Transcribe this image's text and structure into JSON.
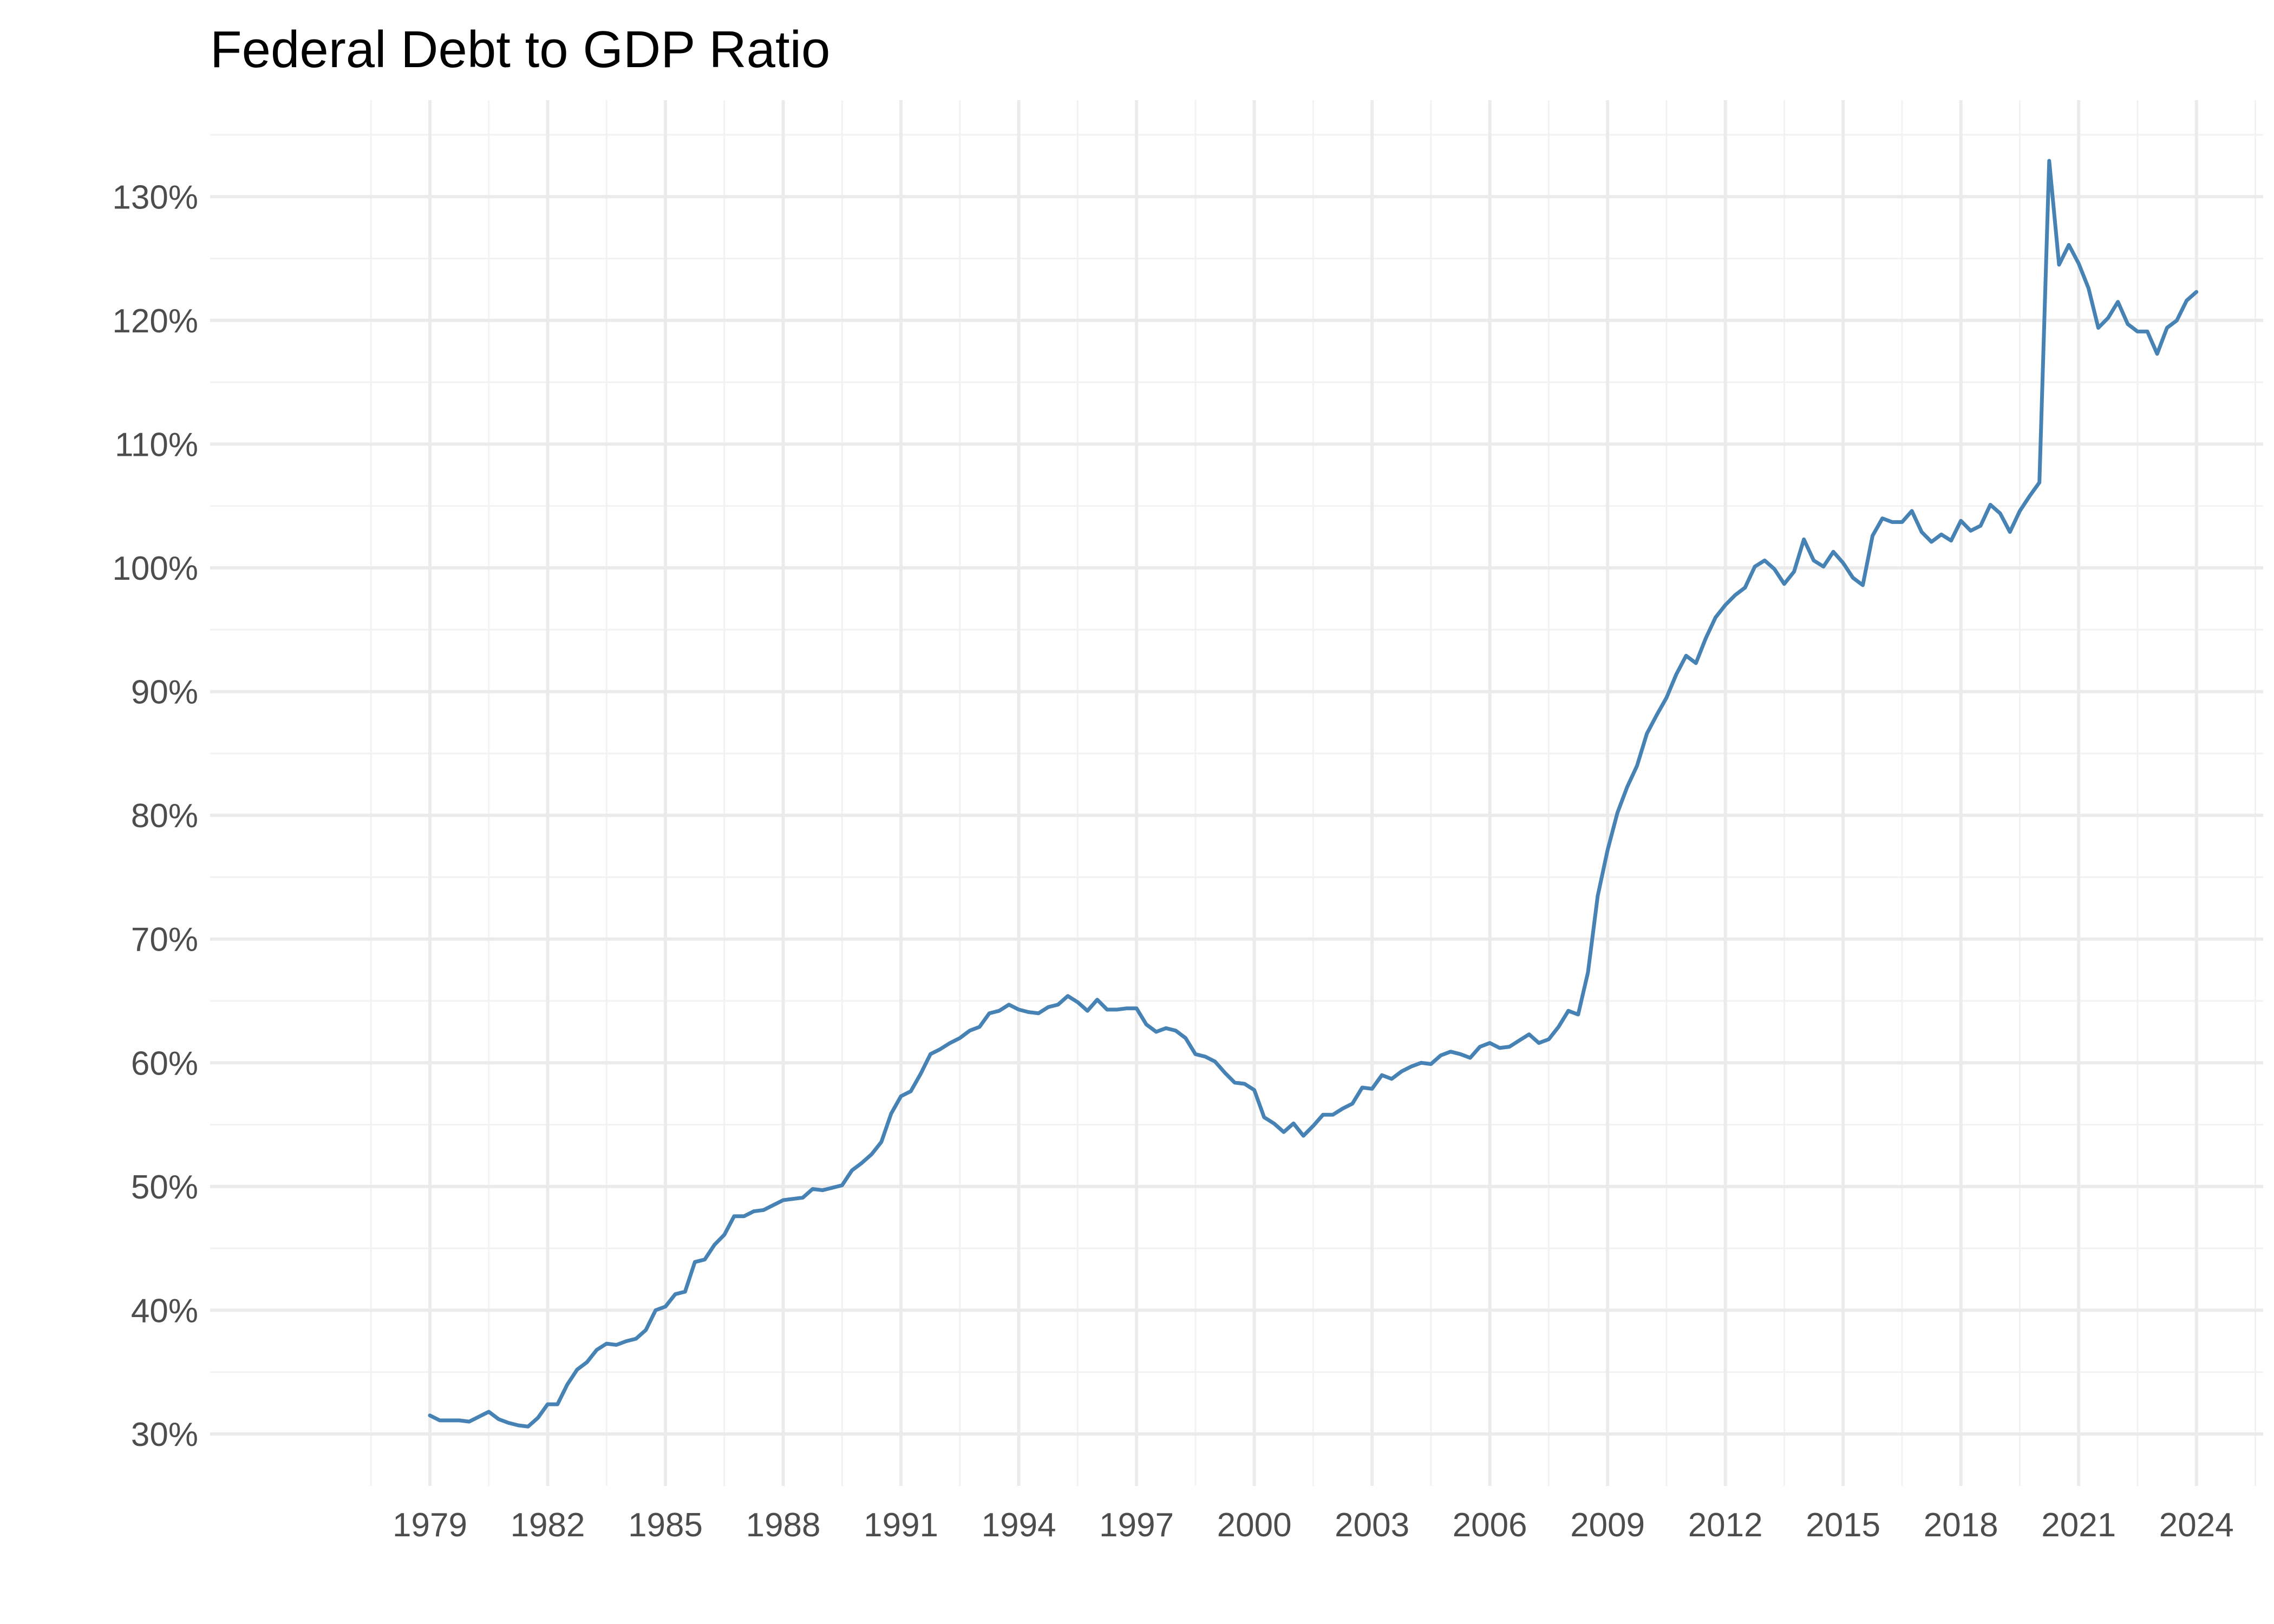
{
  "chart_data": {
    "type": "line",
    "title": "Federal Debt to GDP Ratio",
    "xlabel": "",
    "ylabel": "",
    "grid": true,
    "legend": "none",
    "colors": {
      "line": "#4682b4",
      "grid_major": "#ebebeb",
      "grid_minor": "#f2f2f2",
      "tick_text": "#4d4d4d",
      "title": "#000000",
      "background": "#ffffff"
    },
    "xlim": [
      1973.4,
      2025.7
    ],
    "ylim": [
      25.8,
      137.8
    ],
    "x_ticks": [
      1979,
      1982,
      1985,
      1988,
      1991,
      1994,
      1997,
      2000,
      2003,
      2006,
      2009,
      2012,
      2015,
      2018,
      2021,
      2024
    ],
    "x_tick_labels": [
      "1979",
      "1982",
      "1985",
      "1988",
      "1991",
      "1994",
      "1997",
      "2000",
      "2003",
      "2006",
      "2009",
      "2012",
      "2015",
      "2018",
      "2021",
      "2024"
    ],
    "y_ticks": [
      30,
      40,
      50,
      60,
      70,
      80,
      90,
      100,
      110,
      120,
      130
    ],
    "y_tick_labels": [
      "30%",
      "40%",
      "50%",
      "60%",
      "70%",
      "80%",
      "90%",
      "100%",
      "110%",
      "120%",
      "130%"
    ],
    "series": [
      {
        "name": "Federal Debt to GDP",
        "x": [
          1979.0,
          1979.25,
          1979.5,
          1979.75,
          1980.0,
          1980.25,
          1980.5,
          1980.75,
          1981.0,
          1981.25,
          1981.5,
          1981.75,
          1982.0,
          1982.25,
          1982.5,
          1982.75,
          1983.0,
          1983.25,
          1983.5,
          1983.75,
          1984.0,
          1984.25,
          1984.5,
          1984.75,
          1985.0,
          1985.25,
          1985.5,
          1985.75,
          1986.0,
          1986.25,
          1986.5,
          1986.75,
          1987.0,
          1987.25,
          1987.5,
          1987.75,
          1988.0,
          1988.25,
          1988.5,
          1988.75,
          1989.0,
          1989.25,
          1989.5,
          1989.75,
          1990.0,
          1990.25,
          1990.5,
          1990.75,
          1991.0,
          1991.25,
          1991.5,
          1991.75,
          1992.0,
          1992.25,
          1992.5,
          1992.75,
          1993.0,
          1993.25,
          1993.5,
          1993.75,
          1994.0,
          1994.25,
          1994.5,
          1994.75,
          1995.0,
          1995.25,
          1995.5,
          1995.75,
          1996.0,
          1996.25,
          1996.5,
          1996.75,
          1997.0,
          1997.25,
          1997.5,
          1997.75,
          1998.0,
          1998.25,
          1998.5,
          1998.75,
          1999.0,
          1999.25,
          1999.5,
          1999.75,
          2000.0,
          2000.25,
          2000.5,
          2000.75,
          2001.0,
          2001.25,
          2001.5,
          2001.75,
          2002.0,
          2002.25,
          2002.5,
          2002.75,
          2003.0,
          2003.25,
          2003.5,
          2003.75,
          2004.0,
          2004.25,
          2004.5,
          2004.75,
          2005.0,
          2005.25,
          2005.5,
          2005.75,
          2006.0,
          2006.25,
          2006.5,
          2006.75,
          2007.0,
          2007.25,
          2007.5,
          2007.75,
          2008.0,
          2008.25,
          2008.5,
          2008.75,
          2009.0,
          2009.25,
          2009.5,
          2009.75,
          2010.0,
          2010.25,
          2010.5,
          2010.75,
          2011.0,
          2011.25,
          2011.5,
          2011.75,
          2012.0,
          2012.25,
          2012.5,
          2012.75,
          2013.0,
          2013.25,
          2013.5,
          2013.75,
          2014.0,
          2014.25,
          2014.5,
          2014.75,
          2015.0,
          2015.25,
          2015.5,
          2015.75,
          2016.0,
          2016.25,
          2016.5,
          2016.75,
          2017.0,
          2017.25,
          2017.5,
          2017.75,
          2018.0,
          2018.25,
          2018.5,
          2018.75,
          2019.0,
          2019.25,
          2019.5,
          2019.75,
          2020.0,
          2020.25,
          2020.5,
          2020.75,
          2021.0,
          2021.25,
          2021.5,
          2021.75,
          2022.0,
          2022.25,
          2022.5,
          2022.75,
          2023.0,
          2023.25,
          2023.5,
          2023.75,
          2024.0
        ],
        "values": [
          31.5,
          31.1,
          31.1,
          31.1,
          31.0,
          31.4,
          31.8,
          31.2,
          30.9,
          30.7,
          30.6,
          31.3,
          32.4,
          32.4,
          34.0,
          35.2,
          35.8,
          36.8,
          37.3,
          37.2,
          37.5,
          37.7,
          38.4,
          40.0,
          40.3,
          41.3,
          41.5,
          43.9,
          44.1,
          45.3,
          46.1,
          47.6,
          47.6,
          48.0,
          48.1,
          48.5,
          48.9,
          49.0,
          49.1,
          49.8,
          49.7,
          49.9,
          50.1,
          51.3,
          51.9,
          52.6,
          53.6,
          55.9,
          57.3,
          57.7,
          59.1,
          60.7,
          61.1,
          61.6,
          62.0,
          62.6,
          62.9,
          64.0,
          64.2,
          64.7,
          64.3,
          64.1,
          64.0,
          64.5,
          64.7,
          65.4,
          64.9,
          64.2,
          65.1,
          64.3,
          64.3,
          64.4,
          64.4,
          63.1,
          62.5,
          62.8,
          62.6,
          62.0,
          60.7,
          60.5,
          60.1,
          59.2,
          58.4,
          58.3,
          57.8,
          55.6,
          55.1,
          54.4,
          55.1,
          54.1,
          54.9,
          55.8,
          55.8,
          56.3,
          56.7,
          58.0,
          57.9,
          59.0,
          58.7,
          59.3,
          59.7,
          60.0,
          59.9,
          60.6,
          60.9,
          60.7,
          60.4,
          61.3,
          61.6,
          61.2,
          61.3,
          61.8,
          62.3,
          61.6,
          61.9,
          62.9,
          64.2,
          63.9,
          67.3,
          73.5,
          77.2,
          80.2,
          82.3,
          84.0,
          86.6,
          88.1,
          89.5,
          91.4,
          92.9,
          92.3,
          94.3,
          96.0,
          97.0,
          97.8,
          98.4,
          100.1,
          100.6,
          99.9,
          98.7,
          99.7,
          102.3,
          100.6,
          100.1,
          101.3,
          100.4,
          99.2,
          98.6,
          102.6,
          104.0,
          103.7,
          103.7,
          104.6,
          102.9,
          102.1,
          102.7,
          102.2,
          103.8,
          103.0,
          103.4,
          105.1,
          104.4,
          102.9,
          104.6,
          105.8,
          106.9,
          132.9,
          124.5,
          126.1,
          124.6,
          122.6,
          119.4,
          120.2,
          121.5,
          119.7,
          119.1,
          119.1,
          117.3,
          119.4,
          120.0,
          121.6,
          122.3
        ]
      }
    ]
  }
}
